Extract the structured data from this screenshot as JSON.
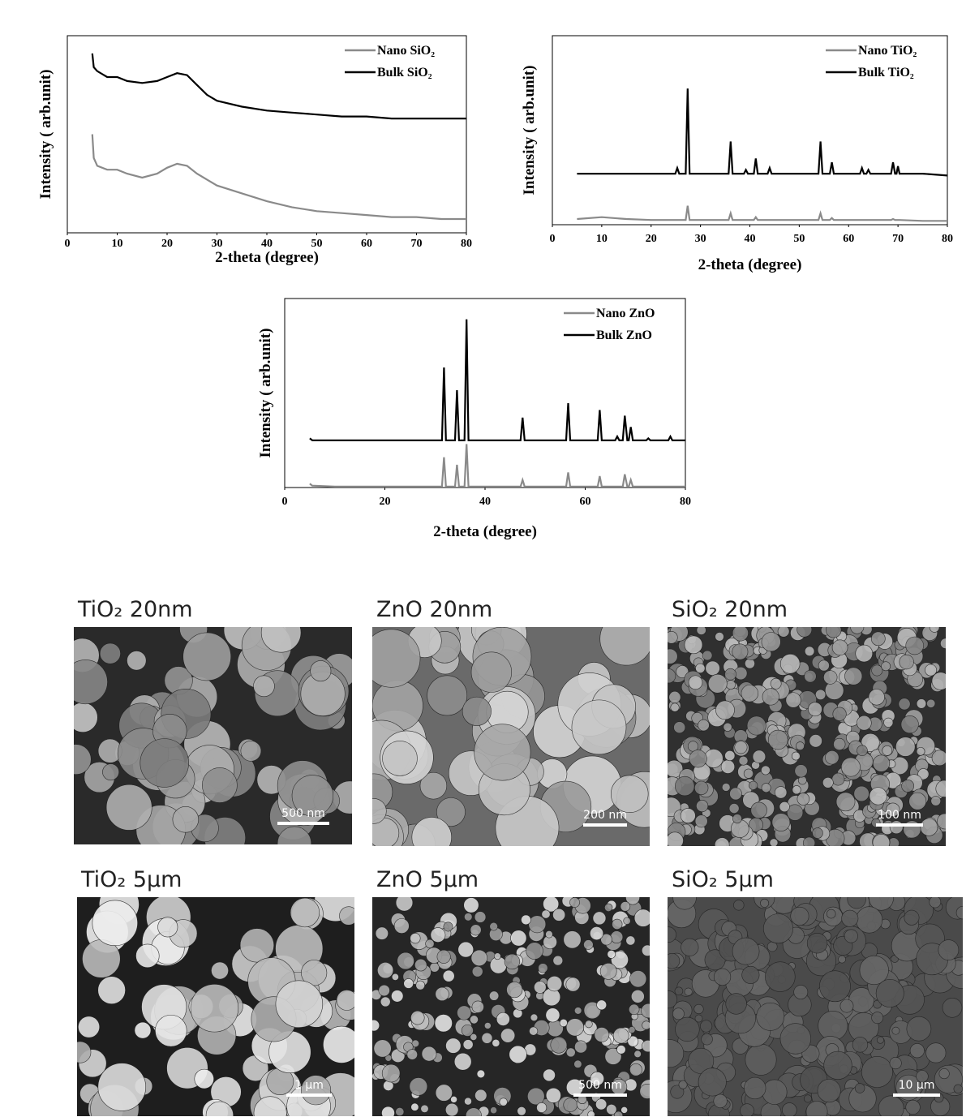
{
  "chart_data": [
    {
      "type": "line",
      "xlabel": "2-theta (degree)",
      "ylabel": "Intensity ( arb.unit)",
      "x": [
        5,
        5.3,
        6,
        8,
        10,
        12,
        15,
        18,
        20,
        22,
        24,
        26,
        28,
        30,
        35,
        40,
        45,
        50,
        55,
        60,
        65,
        70,
        75,
        80
      ],
      "series": [
        {
          "name": "Nano SiO₂",
          "color": "#8a8a8a",
          "values": [
            50,
            38,
            34,
            32,
            32,
            30,
            28,
            30,
            33,
            35,
            34,
            30,
            27,
            24,
            20,
            16,
            13,
            11,
            10,
            9,
            8,
            8,
            7,
            7
          ]
        },
        {
          "name": "Bulk SiO₂",
          "color": "#000000",
          "values": [
            91,
            84,
            82,
            79,
            79,
            77,
            76,
            77,
            79,
            81,
            80,
            75,
            70,
            67,
            64,
            62,
            61,
            60,
            59,
            59,
            58,
            58,
            58,
            58
          ]
        }
      ],
      "xlim": [
        0,
        80
      ],
      "xticks": [
        0,
        10,
        20,
        30,
        40,
        50,
        60,
        70,
        80
      ],
      "ylim": [
        0,
        100
      ],
      "legend": "upper right"
    },
    {
      "type": "line",
      "xlabel": "2-theta (degree)",
      "ylabel": "Intensity ( arb.unit)",
      "x": [
        5,
        10,
        15,
        20,
        24.9,
        25.3,
        25.7,
        27.0,
        27.4,
        27.8,
        35.7,
        36.1,
        36.5,
        38.8,
        39.2,
        39.6,
        40.8,
        41.2,
        41.6,
        43.6,
        44.0,
        44.4,
        53.9,
        54.3,
        54.7,
        56.2,
        56.6,
        57.0,
        62.3,
        62.7,
        63.1,
        63.6,
        64.0,
        64.4,
        68.6,
        69.0,
        69.4,
        69.7,
        70.0,
        70.3,
        75,
        80
      ],
      "series": [
        {
          "name": "Nano TiO₂",
          "color": "#8a8a8a",
          "values": [
            3,
            4,
            3,
            2.5,
            2.5,
            2.5,
            2.5,
            2.5,
            10,
            2.5,
            2.5,
            6,
            2.5,
            2.5,
            2.5,
            2.5,
            2.5,
            4,
            2.5,
            2.5,
            2.5,
            2.5,
            2.5,
            6,
            2.5,
            2.5,
            3.5,
            2.5,
            2.5,
            2.5,
            2.5,
            2.5,
            2.5,
            2.5,
            2.5,
            3,
            2.5,
            2.5,
            2.5,
            2.5,
            2,
            2
          ]
        },
        {
          "name": "Bulk TiO₂",
          "color": "#000000",
          "values": [
            27,
            27,
            27,
            27,
            27,
            30,
            27,
            27,
            72,
            27,
            27,
            44,
            27,
            27,
            29,
            27,
            27,
            35,
            27,
            27,
            30,
            27,
            27,
            44,
            27,
            27,
            33,
            27,
            27,
            30,
            27,
            27,
            29,
            27,
            27,
            33,
            27,
            27,
            31,
            27,
            27,
            26
          ]
        }
      ],
      "xlim": [
        0,
        80
      ],
      "xticks": [
        0,
        10,
        20,
        30,
        40,
        50,
        60,
        70,
        80
      ],
      "ylim": [
        0,
        100
      ],
      "legend": "upper right"
    },
    {
      "type": "line",
      "xlabel": "2-theta (degree)",
      "ylabel": "Intensity ( arb.unit)",
      "x": [
        5,
        5.5,
        10,
        20,
        30,
        31.4,
        31.8,
        32.2,
        34.0,
        34.4,
        34.8,
        35.9,
        36.3,
        36.7,
        47.1,
        47.5,
        47.9,
        56.2,
        56.6,
        57.0,
        62.5,
        62.9,
        63.3,
        66.0,
        66.4,
        66.8,
        67.5,
        67.9,
        68.4,
        68.7,
        69.1,
        69.5,
        72.2,
        72.6,
        73.0,
        76.6,
        77.0,
        77.4,
        80
      ],
      "series": [
        {
          "name": "Nano ZnO",
          "color": "#8a8a8a",
          "values": [
            2,
            1,
            0.5,
            0.5,
            0.5,
            0.5,
            16,
            0.5,
            0.5,
            12,
            0.5,
            0.5,
            23,
            0.5,
            0.5,
            4,
            0.5,
            0.5,
            8,
            0.5,
            0.5,
            6,
            0.5,
            0.5,
            0.5,
            0.5,
            0.5,
            7,
            0.5,
            0.5,
            4,
            0.5,
            0.5,
            0.5,
            0.5,
            0.5,
            0.5,
            0.5,
            0.5
          ]
        },
        {
          "name": "Bulk ZnO",
          "color": "#000000",
          "values": [
            26,
            25,
            25,
            25,
            25,
            25,
            63.5,
            25,
            25,
            51.5,
            25,
            25,
            89,
            25,
            25,
            37,
            25,
            25,
            44.6,
            25,
            25,
            41,
            25,
            25,
            27,
            25,
            25,
            38,
            25,
            25,
            32,
            25,
            25,
            26,
            25,
            25,
            27,
            25,
            25
          ]
        }
      ],
      "xlim": [
        0,
        80
      ],
      "xticks": [
        0,
        20,
        40,
        60,
        80
      ],
      "ylim": [
        0,
        100
      ],
      "legend": "upper right"
    }
  ],
  "sem_panels": [
    {
      "caption": "TiO₂ 20nm",
      "scale_bar": "500 nm"
    },
    {
      "caption": "ZnO 20nm",
      "scale_bar": "200 nm"
    },
    {
      "caption": "SiO₂  20nm",
      "scale_bar": "100 nm"
    },
    {
      "caption": "TiO₂ 5μm",
      "scale_bar": "1 μm"
    },
    {
      "caption": "ZnO 5μm",
      "scale_bar": "500 nm"
    },
    {
      "caption": "SiO₂ 5μm",
      "scale_bar": "10 μm"
    }
  ]
}
